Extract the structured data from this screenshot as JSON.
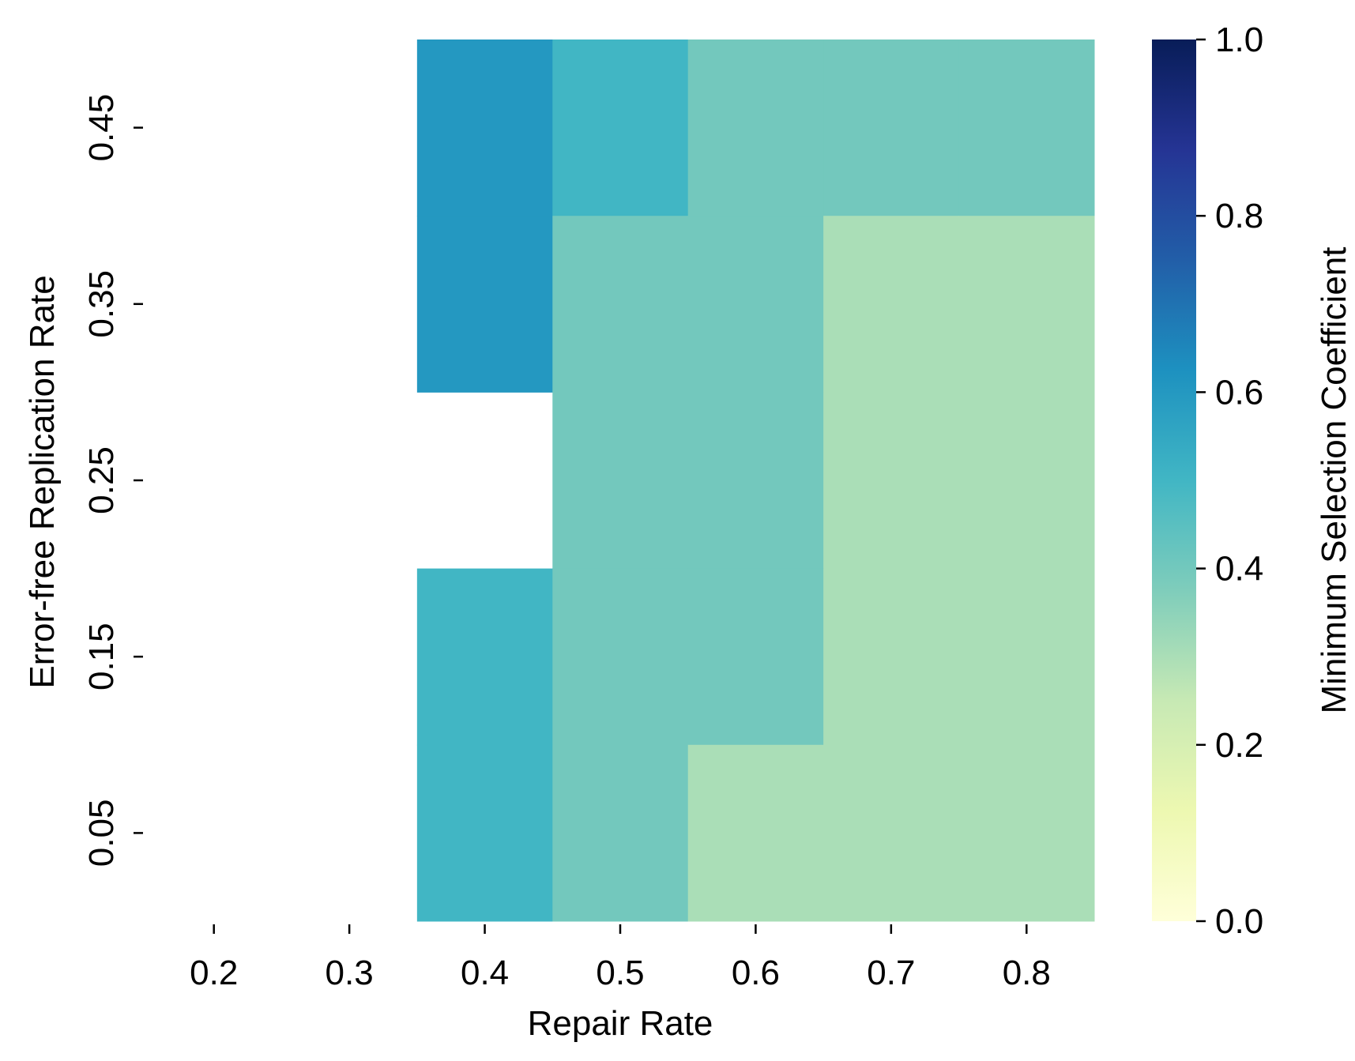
{
  "chart_data": {
    "type": "heatmap",
    "title": "",
    "xlabel": "Repair Rate",
    "ylabel": "Error-free Replication Rate",
    "x_categories": [
      "0.2",
      "0.3",
      "0.4",
      "0.5",
      "0.6",
      "0.7",
      "0.8"
    ],
    "y_categories": [
      "0.45",
      "0.35",
      "0.25",
      "0.15",
      "0.05"
    ],
    "values": [
      [
        null,
        null,
        0.6,
        0.5,
        0.4,
        0.4,
        0.4
      ],
      [
        null,
        null,
        0.6,
        0.4,
        0.4,
        0.3,
        0.3
      ],
      [
        null,
        null,
        null,
        0.4,
        0.4,
        0.3,
        0.3
      ],
      [
        null,
        null,
        0.5,
        0.4,
        0.4,
        0.3,
        0.3
      ],
      [
        null,
        null,
        0.5,
        0.4,
        0.3,
        0.3,
        0.3
      ]
    ],
    "colormap": "YlGnBu",
    "colorbar": {
      "label": "Minimum Selection Coefficient",
      "range": [
        0.0,
        1.0
      ],
      "ticks": [
        "0.0",
        "0.2",
        "0.4",
        "0.6",
        "0.8",
        "1.0"
      ],
      "stops": [
        "#ffffd9",
        "#edf8b1",
        "#c7e9b4",
        "#7fcdbb",
        "#41b6c4",
        "#1d91c0",
        "#225ea8",
        "#253494",
        "#081d58"
      ]
    },
    "grid": false,
    "legend": "colorbar-right"
  }
}
